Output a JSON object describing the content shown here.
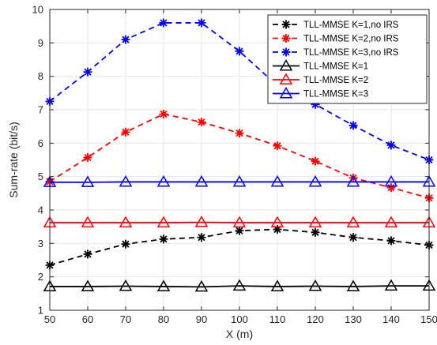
{
  "chart_data": {
    "type": "line",
    "title": "",
    "xlabel": "X (m)",
    "ylabel": "Sum-rate (bit/s)",
    "xlim": [
      50,
      150
    ],
    "ylim": [
      1,
      10
    ],
    "xticks": [
      50,
      60,
      70,
      80,
      90,
      100,
      110,
      120,
      130,
      140,
      150
    ],
    "yticks": [
      1,
      2,
      3,
      4,
      5,
      6,
      7,
      8,
      9,
      10
    ],
    "grid": true,
    "legend_position": "top-right",
    "x": [
      50,
      60,
      70,
      80,
      90,
      100,
      110,
      120,
      130,
      140,
      150
    ],
    "series": [
      {
        "name": "TLL-MMSE K=1,no IRS",
        "color": "#000000",
        "line": "dashed",
        "marker": "asterisk",
        "values": [
          2.35,
          2.68,
          2.98,
          3.13,
          3.18,
          3.38,
          3.42,
          3.33,
          3.18,
          3.08,
          2.95
        ]
      },
      {
        "name": "TLL-MMSE K=2,no IRS",
        "color": "#ff0000",
        "line": "dashed",
        "marker": "asterisk",
        "values": [
          4.85,
          5.57,
          6.33,
          6.87,
          6.63,
          6.3,
          5.92,
          5.46,
          4.96,
          4.67,
          4.36
        ]
      },
      {
        "name": "TLL-MMSE K=3,no IRS",
        "color": "#0000ff",
        "line": "dashed",
        "marker": "asterisk",
        "values": [
          7.25,
          8.13,
          9.1,
          9.6,
          9.6,
          8.75,
          7.72,
          7.16,
          6.53,
          5.94,
          5.5
        ]
      },
      {
        "name": "TLL-MMSE K=1",
        "color": "#000000",
        "line": "solid",
        "marker": "triangle",
        "values": [
          1.71,
          1.71,
          1.72,
          1.71,
          1.7,
          1.73,
          1.71,
          1.72,
          1.71,
          1.73,
          1.73
        ]
      },
      {
        "name": "TLL-MMSE K=2",
        "color": "#ff0000",
        "line": "solid",
        "marker": "triangle",
        "values": [
          3.62,
          3.62,
          3.62,
          3.62,
          3.63,
          3.62,
          3.62,
          3.62,
          3.62,
          3.62,
          3.62
        ]
      },
      {
        "name": "TLL-MMSE K=3",
        "color": "#0000ff",
        "line": "solid",
        "marker": "triangle",
        "values": [
          4.83,
          4.83,
          4.84,
          4.84,
          4.84,
          4.84,
          4.84,
          4.84,
          4.84,
          4.84,
          4.84
        ]
      }
    ]
  }
}
